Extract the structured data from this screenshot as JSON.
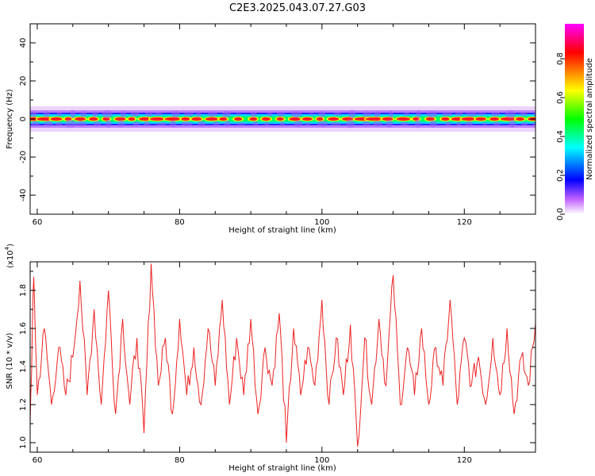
{
  "title": "C2E3.2025.043.07.27.G03",
  "chart_data": [
    {
      "type": "heatmap",
      "xlabel": "Height of straight line (km)",
      "ylabel": "Frequency (Hz)",
      "xlim": [
        59,
        130
      ],
      "ylim": [
        -50,
        50
      ],
      "xticks": [
        60,
        80,
        100,
        120
      ],
      "yticks": [
        40,
        20,
        0,
        -20,
        -40
      ],
      "description": "narrow band of high normalized spectral amplitude centered at 0 Hz spanning full height range",
      "colorbar": {
        "label": "Normalized spectral amplitude",
        "range": [
          0,
          1
        ],
        "ticks": [
          0.0,
          0.2,
          0.4,
          0.6,
          0.8
        ],
        "tick_labels": [
          "0.0",
          "0.2",
          "0.4",
          "0.6",
          "0.8"
        ],
        "colors": [
          "#ffffff",
          "#b000ff",
          "#0000ff",
          "#00ffff",
          "#00ff00",
          "#ffff00",
          "#ff0000",
          "#ff00ff"
        ]
      }
    },
    {
      "type": "line",
      "xlabel": "Height of straight line (km)",
      "ylabel": "SNR (10 * v/v)",
      "yscale_label": "(x10",
      "yscale_exp": "4",
      "yscale_close": ")",
      "xlim": [
        59,
        130
      ],
      "ylim": [
        0.95,
        1.95
      ],
      "xticks": [
        60,
        80,
        100,
        120
      ],
      "yticks": [
        1.0,
        1.2,
        1.4,
        1.6,
        1.8
      ],
      "ytick_labels": [
        "1.0",
        "1.2",
        "1.4",
        "1.6",
        "1.8"
      ],
      "color": "#ee2222",
      "series": [
        {
          "x": [
            59,
            59.5,
            60,
            61,
            62,
            63,
            64,
            65,
            66,
            67,
            68,
            69,
            70,
            71,
            72,
            73,
            74,
            75,
            76,
            77,
            78,
            79,
            80,
            81,
            82,
            83,
            84,
            85,
            86,
            87,
            88,
            89,
            90,
            91,
            92,
            93,
            94,
            95,
            96,
            97,
            98,
            99,
            100,
            101,
            102,
            103,
            104,
            105,
            106,
            107,
            108,
            109,
            110,
            111,
            112,
            113,
            114,
            115,
            116,
            117,
            118,
            119,
            120,
            121,
            122,
            123,
            124,
            125,
            126,
            127,
            128,
            129,
            130
          ],
          "y": [
            1.1,
            1.87,
            1.25,
            1.6,
            1.2,
            1.5,
            1.25,
            1.45,
            1.85,
            1.25,
            1.7,
            1.2,
            1.8,
            1.15,
            1.65,
            1.2,
            1.55,
            1.05,
            1.94,
            1.3,
            1.55,
            1.15,
            1.65,
            1.25,
            1.5,
            1.2,
            1.6,
            1.3,
            1.75,
            1.2,
            1.55,
            1.25,
            1.65,
            1.15,
            1.5,
            1.3,
            1.68,
            1.0,
            1.6,
            1.25,
            1.5,
            1.3,
            1.75,
            1.2,
            1.55,
            1.25,
            1.62,
            0.98,
            1.55,
            1.2,
            1.65,
            1.3,
            1.88,
            1.2,
            1.5,
            1.25,
            1.6,
            1.2,
            1.5,
            1.3,
            1.75,
            1.2,
            1.55,
            1.3,
            1.45,
            1.2,
            1.55,
            1.25,
            1.6,
            1.15,
            1.45,
            1.3,
            1.63
          ]
        }
      ]
    }
  ]
}
